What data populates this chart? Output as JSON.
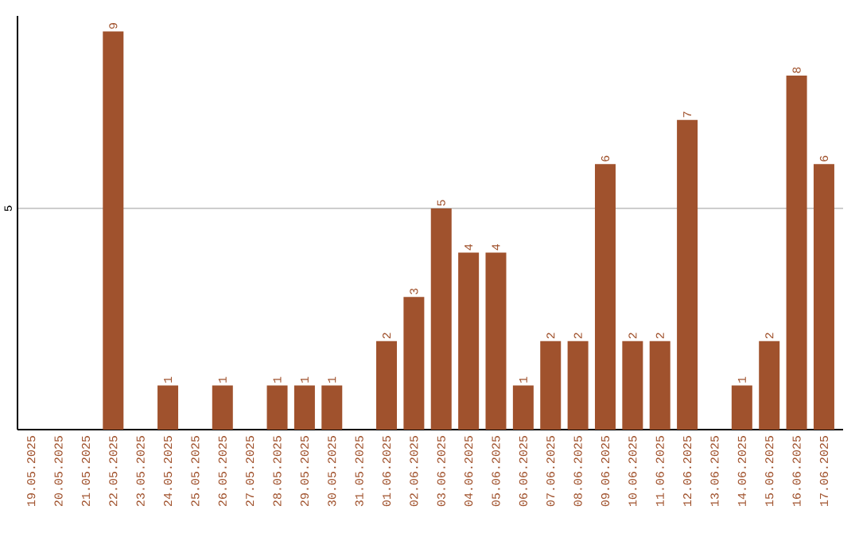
{
  "chart_data": {
    "type": "bar",
    "categories": [
      "19.05.2025",
      "20.05.2025",
      "21.05.2025",
      "22.05.2025",
      "23.05.2025",
      "24.05.2025",
      "25.05.2025",
      "26.05.2025",
      "27.05.2025",
      "28.05.2025",
      "29.05.2025",
      "30.05.2025",
      "31.05.2025",
      "01.06.2025",
      "02.06.2025",
      "03.06.2025",
      "04.06.2025",
      "05.06.2025",
      "06.06.2025",
      "07.06.2025",
      "08.06.2025",
      "09.06.2025",
      "10.06.2025",
      "11.06.2025",
      "12.06.2025",
      "13.06.2025",
      "14.06.2025",
      "15.06.2025",
      "16.06.2025",
      "17.06.2025"
    ],
    "values": [
      0,
      0,
      0,
      9,
      0,
      1,
      0,
      1,
      0,
      1,
      1,
      1,
      0,
      2,
      3,
      5,
      4,
      4,
      1,
      2,
      2,
      6,
      2,
      2,
      7,
      0,
      1,
      2,
      8,
      6
    ],
    "value_labels": [
      null,
      null,
      null,
      "9",
      null,
      "1",
      null,
      "1",
      null,
      "1",
      "1",
      "1",
      null,
      "2",
      "3",
      "5",
      "4",
      "4",
      "1",
      "2",
      "2",
      "6",
      "2",
      "2",
      "7",
      null,
      "1",
      "2",
      "8",
      "6"
    ],
    "color": "#a0522d",
    "ylim": [
      0,
      9.35
    ],
    "yticks": [
      5
    ],
    "grid": "y"
  }
}
